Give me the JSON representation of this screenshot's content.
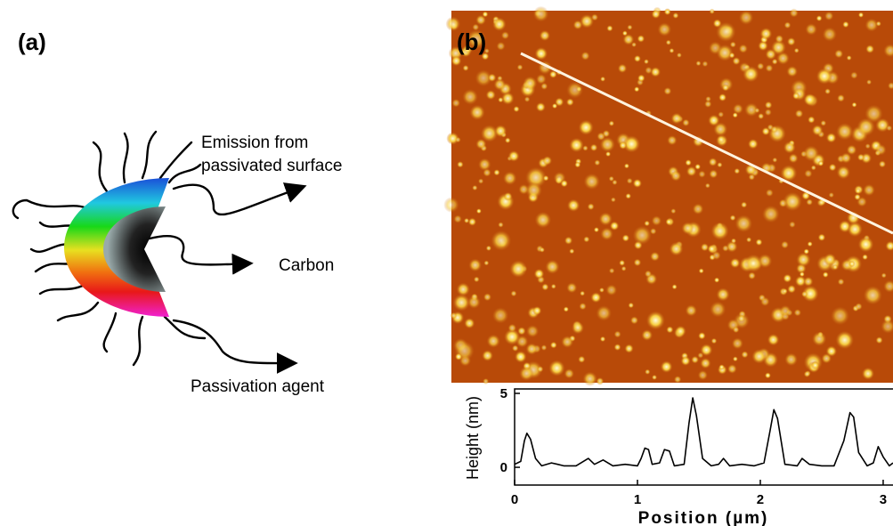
{
  "panel_a": {
    "label": "(a)",
    "emission_label": [
      "Emission from",
      "passivated surface"
    ],
    "carbon_label": "Carbon",
    "agent_label": "Passivation agent"
  },
  "panel_b": {
    "label": "(b)"
  },
  "chart_data": {
    "type": "line",
    "x_label": "Position (µm)",
    "y_label": "Height (nm)",
    "x": [
      0,
      0.05,
      0.08,
      0.1,
      0.13,
      0.17,
      0.22,
      0.3,
      0.35,
      0.4,
      0.5,
      0.6,
      0.65,
      0.72,
      0.8,
      0.9,
      1.0,
      1.03,
      1.06,
      1.09,
      1.12,
      1.18,
      1.22,
      1.26,
      1.3,
      1.38,
      1.42,
      1.45,
      1.48,
      1.53,
      1.6,
      1.66,
      1.7,
      1.75,
      1.85,
      1.95,
      2.03,
      2.08,
      2.11,
      2.14,
      2.2,
      2.3,
      2.34,
      2.4,
      2.5,
      2.6,
      2.68,
      2.73,
      2.76,
      2.8,
      2.87,
      2.92,
      2.96,
      3.0,
      3.05,
      3.08
    ],
    "values": [
      0.2,
      0.4,
      1.8,
      2.3,
      1.9,
      0.6,
      0.1,
      0.3,
      0.2,
      0.1,
      0.1,
      0.6,
      0.2,
      0.5,
      0.1,
      0.2,
      0.1,
      0.6,
      1.3,
      1.2,
      0.2,
      0.3,
      1.2,
      1.1,
      0.1,
      0.2,
      3.0,
      4.7,
      3.5,
      0.6,
      0.1,
      0.2,
      0.6,
      0.1,
      0.2,
      0.1,
      0.3,
      2.5,
      3.9,
      3.3,
      0.2,
      0.1,
      0.6,
      0.2,
      0.1,
      0.1,
      1.8,
      3.7,
      3.4,
      1.0,
      0.1,
      0.3,
      1.4,
      0.7,
      0.1,
      0.3
    ],
    "color": "#000000",
    "xlim": [
      0,
      3.08
    ],
    "ylim": [
      -1.2,
      5.3
    ],
    "xticks": [
      0,
      1,
      2,
      3
    ],
    "yticks": [
      0,
      5
    ]
  }
}
